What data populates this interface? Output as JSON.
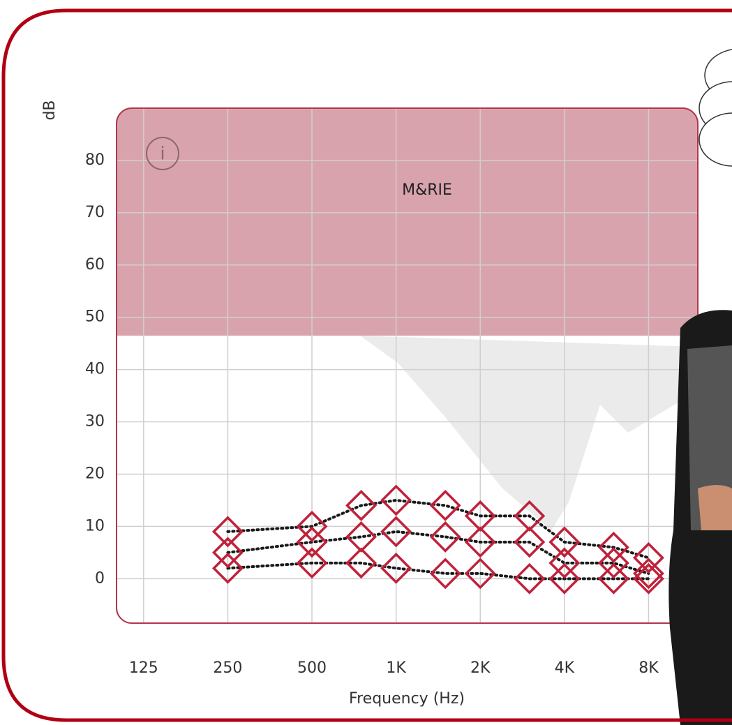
{
  "chart_data": {
    "type": "line",
    "annotation": "M&RIE",
    "info_icon": "i",
    "y_label": "dB",
    "x_label": "Frequency (Hz)",
    "log_x": true,
    "grid": true,
    "x": [
      250,
      500,
      750,
      1000,
      1500,
      2000,
      3000,
      4000,
      6000,
      8000
    ],
    "series": [
      {
        "color": "#c0213a",
        "values": [
          9,
          10,
          14,
          15,
          14,
          12,
          12,
          7,
          6,
          4
        ]
      },
      {
        "color": "#c0213a",
        "values": [
          5,
          7,
          8,
          9,
          8,
          7,
          7,
          3,
          3,
          1
        ]
      },
      {
        "color": "#c0213a",
        "values": [
          2,
          3,
          3,
          2,
          1,
          1,
          0,
          0,
          0,
          0
        ]
      }
    ],
    "xlim": [
      100,
      12000
    ],
    "xticks": [
      125,
      250,
      500,
      {
        "value": 1000,
        "label": "1K"
      },
      {
        "value": 2000,
        "label": "2K"
      },
      {
        "value": 4000,
        "label": "4K"
      },
      {
        "value": 8000,
        "label": "8K"
      }
    ],
    "ylim": [
      -8.5,
      90
    ],
    "yticks": [
      0,
      10,
      20,
      30,
      40,
      50,
      60,
      70,
      80
    ]
  }
}
